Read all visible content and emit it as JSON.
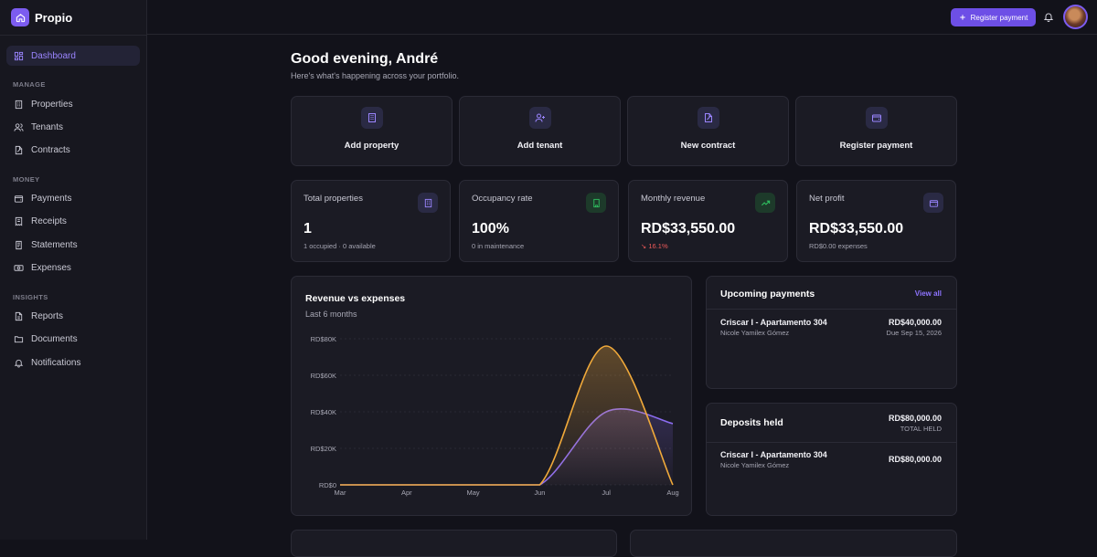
{
  "app": {
    "name": "Propio"
  },
  "sidebar": {
    "dashboard": "Dashboard",
    "sections": {
      "manage": "MANAGE",
      "money": "MONEY",
      "insights": "INSIGHTS"
    },
    "manage_items": [
      "Properties",
      "Tenants",
      "Contracts"
    ],
    "money_items": [
      "Payments",
      "Receipts",
      "Statements",
      "Expenses"
    ],
    "insights_items": [
      "Reports",
      "Documents",
      "Notifications"
    ]
  },
  "topbar": {
    "register_payment": "Register payment"
  },
  "header": {
    "greeting": "Good evening, André",
    "subtitle": "Here's what's happening across your portfolio."
  },
  "quick_actions": [
    "Add property",
    "Add tenant",
    "New contract",
    "Register payment"
  ],
  "stats": [
    {
      "label": "Total properties",
      "value": "1",
      "sub": "1 occupied · 0 available"
    },
    {
      "label": "Occupancy rate",
      "value": "100%",
      "sub": "0 in maintenance"
    },
    {
      "label": "Monthly revenue",
      "value": "RD$33,550.00",
      "sub": "↘ 16.1%"
    },
    {
      "label": "Net profit",
      "value": "RD$33,550.00",
      "sub": "RD$0.00 expenses"
    }
  ],
  "colors": {
    "accent": "#7c5cf0",
    "revenue": "#f0a93a",
    "expenses": "#8b6cf0",
    "success": "#2fbf5f",
    "danger": "#ef5a5a"
  },
  "chart_data": {
    "type": "line",
    "title": "Revenue vs expenses",
    "subtitle": "Last 6 months",
    "categories": [
      "Mar",
      "Apr",
      "May",
      "Jun",
      "Jul",
      "Aug"
    ],
    "y_ticks": [
      "RD$0",
      "RD$20K",
      "RD$40K",
      "RD$60K",
      "RD$80K"
    ],
    "ylim": [
      0,
      80000
    ],
    "series": [
      {
        "values": [
          0,
          0,
          0,
          0,
          76000,
          0
        ],
        "color": "#f0a93a"
      },
      {
        "values": [
          0,
          0,
          0,
          0,
          40000,
          33550
        ],
        "color": "#8b6cf0"
      }
    ],
    "grid": true
  },
  "upcoming": {
    "title": "Upcoming payments",
    "view_all": "View all",
    "rows": [
      {
        "property": "Criscar I - Apartamento 304",
        "tenant": "Nicole Yamilex Gómez",
        "amount": "RD$40,000.00",
        "due": "Due Sep 15, 2026"
      }
    ]
  },
  "deposits": {
    "title": "Deposits held",
    "total": "RD$80,000.00",
    "total_label": "TOTAL HELD",
    "rows": [
      {
        "property": "Criscar I - Apartamento 304",
        "tenant": "Nicole Yamilex Gómez",
        "amount": "RD$80,000.00"
      }
    ]
  }
}
